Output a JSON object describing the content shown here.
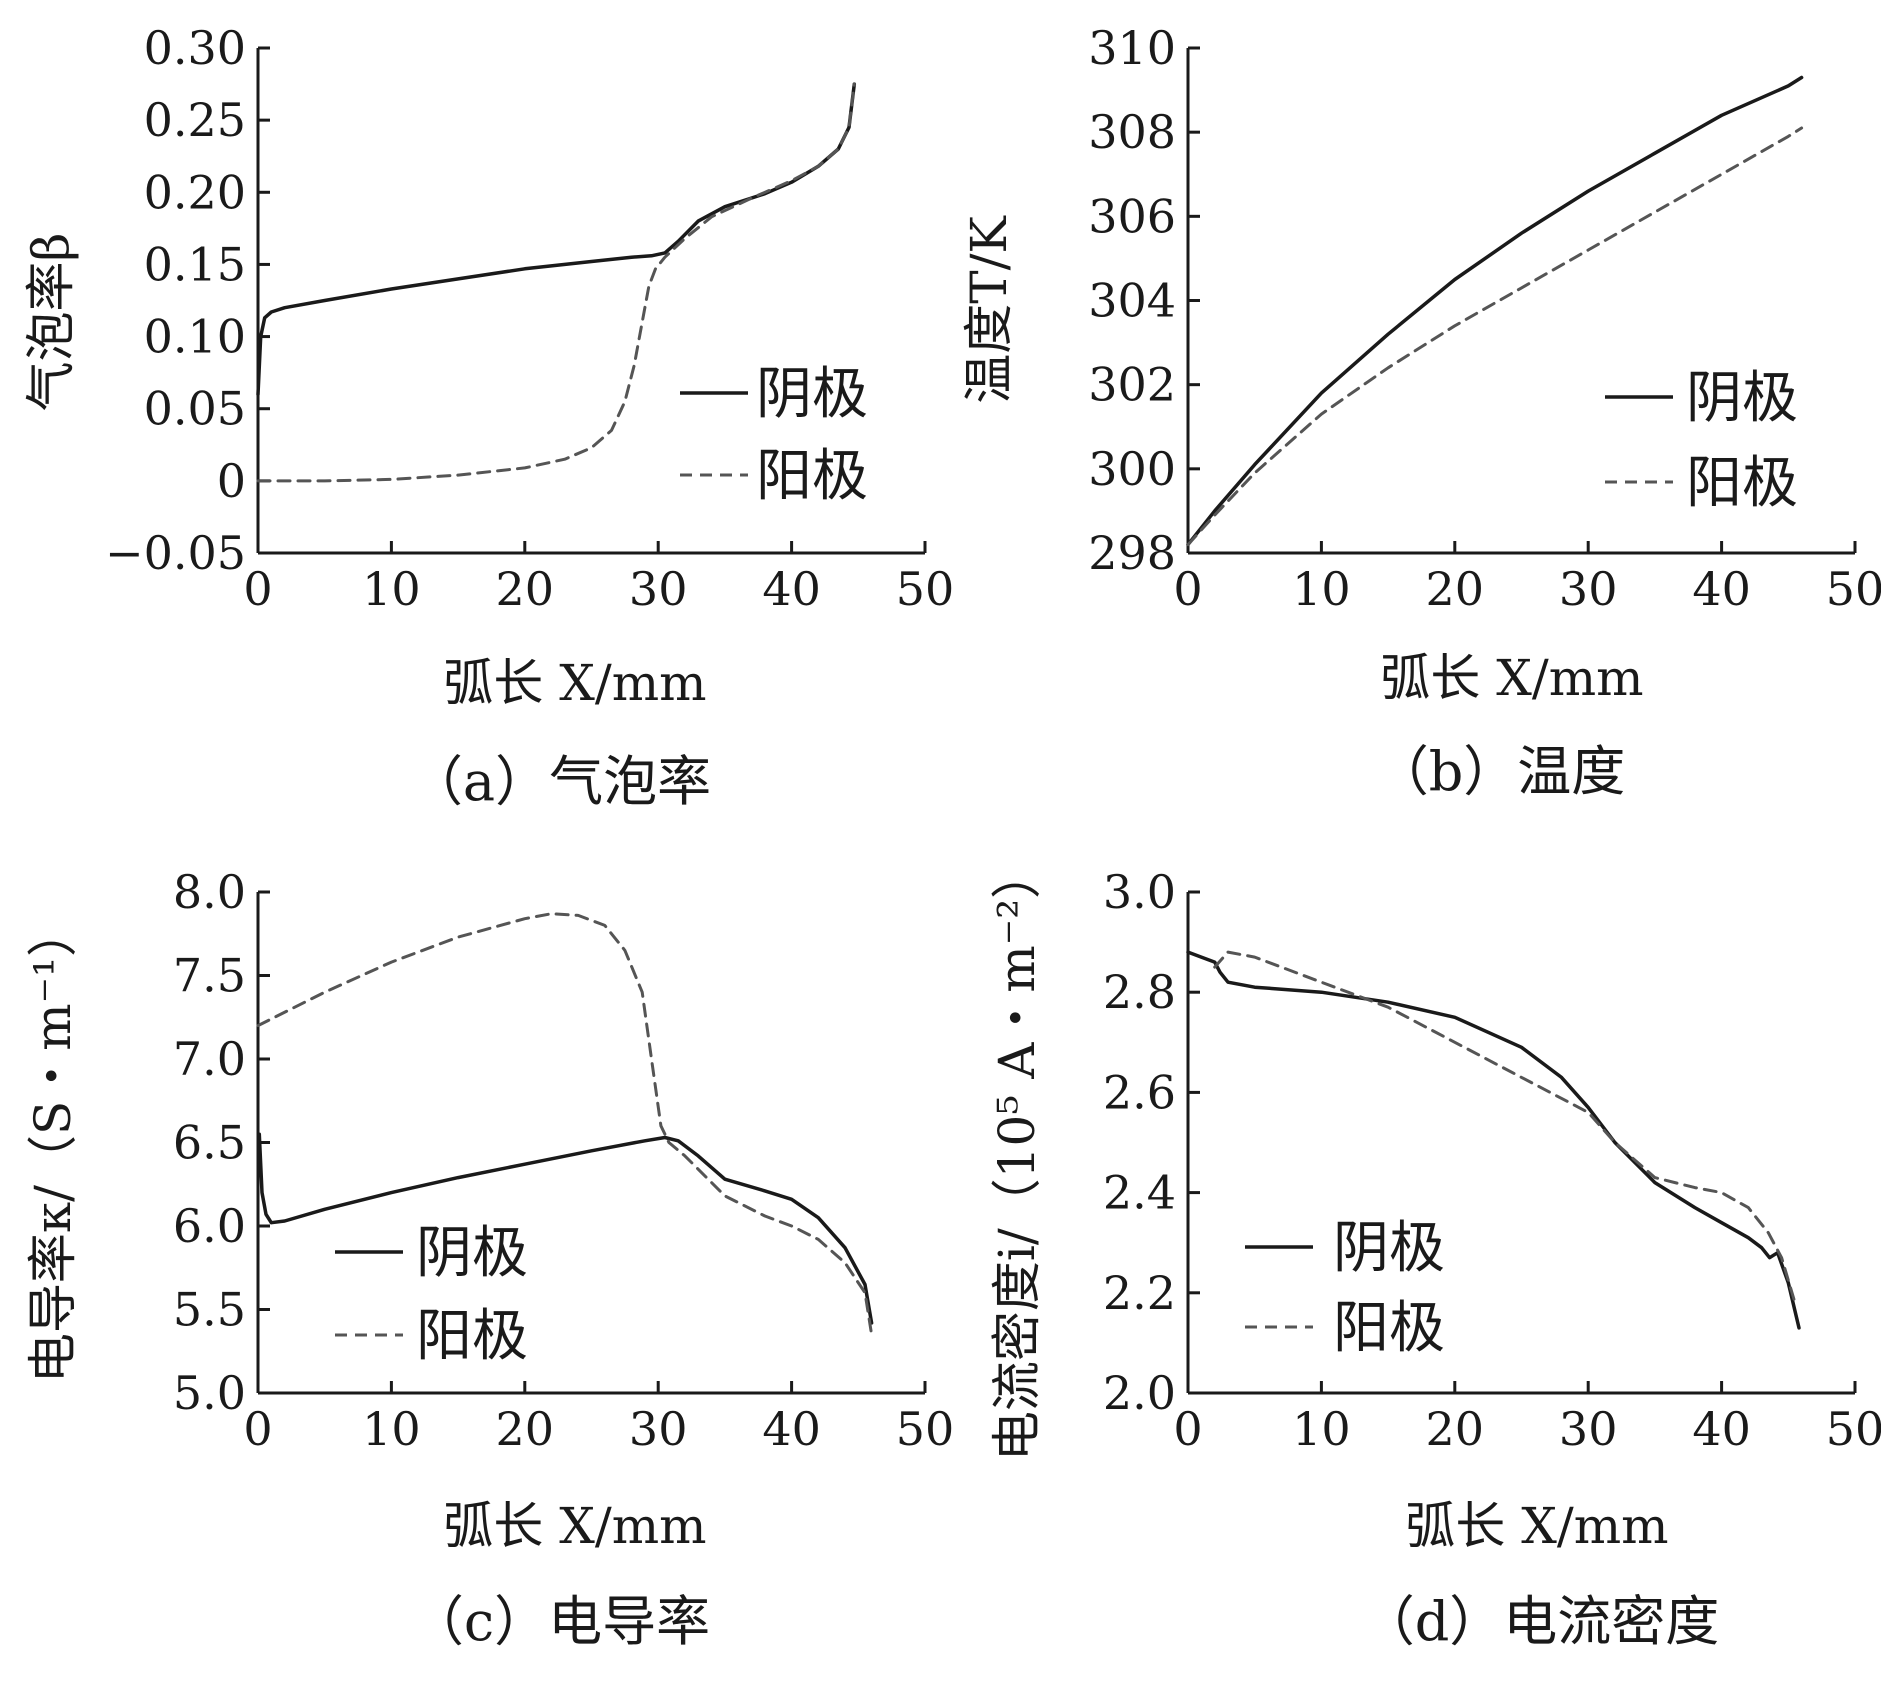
{
  "chart_data": [
    {
      "id": "a",
      "type": "line",
      "caption": "（a）气泡率",
      "xlabel": "弧长 X/mm",
      "ylabel": "气泡率β",
      "xlim": [
        0,
        50
      ],
      "ylim": [
        -0.05,
        0.3
      ],
      "xticks": [
        0,
        10,
        20,
        30,
        40,
        50
      ],
      "xtick_labels": [
        "0",
        "10",
        "20",
        "30",
        "40",
        "50"
      ],
      "yticks": [
        -0.05,
        0,
        0.05,
        0.1,
        0.15,
        0.2,
        0.25,
        0.3
      ],
      "ytick_labels": [
        "−0.05",
        "0",
        "0.05",
        "0.10",
        "0.15",
        "0.20",
        "0.25",
        "0.30"
      ],
      "legend_position": "right",
      "series": [
        {
          "name": "阴极",
          "style": "solid",
          "color": "#1a1a1a",
          "x": [
            0,
            0.2,
            0.5,
            1,
            2,
            5,
            10,
            15,
            20,
            25,
            28,
            29.5,
            30.5,
            31.5,
            33,
            35,
            38,
            40,
            42,
            43.5,
            44.3,
            44.7
          ],
          "y": [
            0.06,
            0.1,
            0.113,
            0.117,
            0.12,
            0.125,
            0.133,
            0.14,
            0.147,
            0.152,
            0.155,
            0.156,
            0.158,
            0.166,
            0.18,
            0.19,
            0.199,
            0.207,
            0.218,
            0.23,
            0.245,
            0.275
          ]
        },
        {
          "name": "阳极",
          "style": "dashed",
          "color": "#555555",
          "x": [
            0,
            5,
            10,
            15,
            20,
            23,
            25,
            26.5,
            27.5,
            28.2,
            28.8,
            29.3,
            29.8,
            30.5,
            32,
            34,
            37,
            40,
            42,
            43.5,
            44.3,
            44.7
          ],
          "y": [
            0,
            0,
            0.001,
            0.004,
            0.009,
            0.015,
            0.023,
            0.035,
            0.055,
            0.08,
            0.11,
            0.135,
            0.147,
            0.155,
            0.168,
            0.183,
            0.196,
            0.208,
            0.218,
            0.23,
            0.245,
            0.275
          ]
        }
      ]
    },
    {
      "id": "b",
      "type": "line",
      "caption": "（b）温度",
      "xlabel": "弧长 X/mm",
      "ylabel": "温度T/K",
      "xlim": [
        0,
        50
      ],
      "ylim": [
        298,
        310
      ],
      "xticks": [
        0,
        10,
        20,
        30,
        40,
        50
      ],
      "xtick_labels": [
        "0",
        "10",
        "20",
        "30",
        "40",
        "50"
      ],
      "yticks": [
        298,
        300,
        302,
        304,
        306,
        308,
        310
      ],
      "ytick_labels": [
        "298",
        "300",
        "302",
        "304",
        "306",
        "308",
        "310"
      ],
      "legend_position": "right",
      "series": [
        {
          "name": "阴极",
          "style": "solid",
          "color": "#1a1a1a",
          "x": [
            0,
            2,
            5,
            10,
            15,
            20,
            25,
            30,
            35,
            40,
            45,
            46
          ],
          "y": [
            298.2,
            299.0,
            300.1,
            301.8,
            303.2,
            304.5,
            305.6,
            306.6,
            307.5,
            308.4,
            309.1,
            309.3
          ]
        },
        {
          "name": "阳极",
          "style": "dashed",
          "color": "#555555",
          "x": [
            0,
            2,
            5,
            10,
            15,
            20,
            25,
            30,
            35,
            40,
            45,
            46
          ],
          "y": [
            298.2,
            298.9,
            299.9,
            301.3,
            302.4,
            303.4,
            304.3,
            305.2,
            306.1,
            307.0,
            307.9,
            308.1
          ]
        }
      ]
    },
    {
      "id": "c",
      "type": "line",
      "caption": "（c）电导率",
      "xlabel": "弧长 X/mm",
      "ylabel": "电导率κ/（S・m⁻¹）",
      "xlim": [
        0,
        50
      ],
      "ylim": [
        5.0,
        8.0
      ],
      "xticks": [
        0,
        10,
        20,
        30,
        40,
        50
      ],
      "xtick_labels": [
        "0",
        "10",
        "20",
        "30",
        "40",
        "50"
      ],
      "yticks": [
        5.0,
        5.5,
        6.0,
        6.5,
        7.0,
        7.5,
        8.0
      ],
      "ytick_labels": [
        "5.0",
        "5.5",
        "6.0",
        "6.5",
        "7.0",
        "7.5",
        "8.0"
      ],
      "legend_position": "center",
      "series": [
        {
          "name": "阴极",
          "style": "solid",
          "color": "#1a1a1a",
          "x": [
            0.1,
            0.3,
            0.6,
            1,
            2,
            5,
            10,
            15,
            20,
            25,
            29,
            30.5,
            31.5,
            33,
            35,
            38,
            40,
            42,
            44,
            45.5,
            46
          ],
          "y": [
            6.55,
            6.2,
            6.07,
            6.02,
            6.03,
            6.1,
            6.2,
            6.29,
            6.37,
            6.45,
            6.51,
            6.53,
            6.51,
            6.42,
            6.28,
            6.21,
            6.16,
            6.05,
            5.87,
            5.65,
            5.42
          ]
        },
        {
          "name": "阳极",
          "style": "dashed",
          "color": "#555555",
          "x": [
            0,
            5,
            10,
            15,
            20,
            22,
            24,
            26,
            27.5,
            28.8,
            29.5,
            30.2,
            30.8,
            32,
            35,
            38,
            40,
            42,
            44,
            45.5,
            46
          ],
          "y": [
            7.2,
            7.4,
            7.58,
            7.73,
            7.84,
            7.87,
            7.86,
            7.8,
            7.65,
            7.4,
            7.0,
            6.6,
            6.5,
            6.42,
            6.18,
            6.06,
            6.0,
            5.92,
            5.78,
            5.6,
            5.35
          ]
        }
      ]
    },
    {
      "id": "d",
      "type": "line",
      "caption": "（d）电流密度",
      "xlabel": "弧长 X/mm",
      "ylabel": "电流密度i/（10⁵ A・m⁻²）",
      "xlim": [
        0,
        50
      ],
      "ylim": [
        2.0,
        3.0
      ],
      "xticks": [
        0,
        10,
        20,
        30,
        40,
        50
      ],
      "xtick_labels": [
        "0",
        "10",
        "20",
        "30",
        "40",
        "50"
      ],
      "yticks": [
        2.0,
        2.2,
        2.4,
        2.6,
        2.8,
        3.0
      ],
      "ytick_labels": [
        "2.0",
        "2.2",
        "2.4",
        "2.6",
        "2.8",
        "3.0"
      ],
      "legend_position": "left",
      "series": [
        {
          "name": "阴极",
          "style": "solid",
          "color": "#1a1a1a",
          "x": [
            0,
            1,
            2,
            2.4,
            3,
            5,
            10,
            15,
            20,
            25,
            28,
            30,
            32,
            35,
            38,
            40,
            42,
            43,
            43.6,
            44.2,
            45,
            45.8
          ],
          "y": [
            2.88,
            2.87,
            2.86,
            2.84,
            2.82,
            2.81,
            2.8,
            2.78,
            2.75,
            2.69,
            2.63,
            2.57,
            2.5,
            2.42,
            2.37,
            2.34,
            2.31,
            2.29,
            2.27,
            2.28,
            2.22,
            2.13
          ]
        },
        {
          "name": "阳极",
          "style": "dashed",
          "color": "#555555",
          "x": [
            2,
            3,
            5,
            10,
            15,
            20,
            25,
            30,
            32,
            35,
            38,
            40,
            42,
            43.5,
            44.5,
            45.5
          ],
          "y": [
            2.85,
            2.88,
            2.87,
            2.82,
            2.77,
            2.7,
            2.63,
            2.56,
            2.5,
            2.43,
            2.41,
            2.4,
            2.37,
            2.32,
            2.27,
            2.18
          ]
        }
      ]
    }
  ]
}
